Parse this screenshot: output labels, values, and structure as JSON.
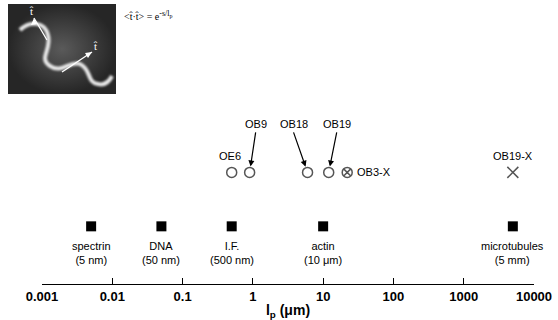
{
  "chart_data": {
    "type": "scatter",
    "log": "x",
    "grid": false,
    "tick_labels": "x",
    "xlabel": {
      "symbol": "l",
      "subscript": "p",
      "unit": "(μm)"
    },
    "xlim": [
      0.001,
      10000
    ],
    "xticks": [
      0.001,
      0.01,
      0.1,
      1,
      10,
      100,
      1000,
      10000
    ],
    "series": [
      {
        "marker": "square",
        "color": "#000000",
        "x": [
          0.005,
          0.05,
          0.5,
          10,
          5000
        ],
        "labels": [
          [
            "spectrin",
            "(5 nm)"
          ],
          [
            "DNA",
            "(50 nm)"
          ],
          [
            "I.F.",
            "(500 nm)"
          ],
          [
            "actin",
            "(10 μm)"
          ],
          [
            "microtubules",
            "(5 mm)"
          ]
        ]
      },
      {
        "marker": "circle",
        "color": "#555555",
        "x": [
          0.5,
          0.9,
          6,
          12
        ],
        "labels": [
          [
            "OE6"
          ],
          [
            "OB9"
          ],
          [
            "OB18"
          ],
          [
            "OB19"
          ]
        ]
      },
      {
        "marker": "circled_x",
        "color": "#555555",
        "x": [
          22
        ],
        "labels": [
          [
            "OB3-X"
          ]
        ]
      },
      {
        "marker": "x",
        "color": "#555555",
        "x": [
          5000
        ],
        "labels": [
          [
            "OB19-X"
          ]
        ]
      }
    ],
    "inset": {
      "vector_labels": [
        "t̂",
        "t̂"
      ],
      "formula": {
        "base": "<t̂·t̂> = e",
        "exponent": "-s/l",
        "exponent_subscript": "p"
      }
    }
  }
}
